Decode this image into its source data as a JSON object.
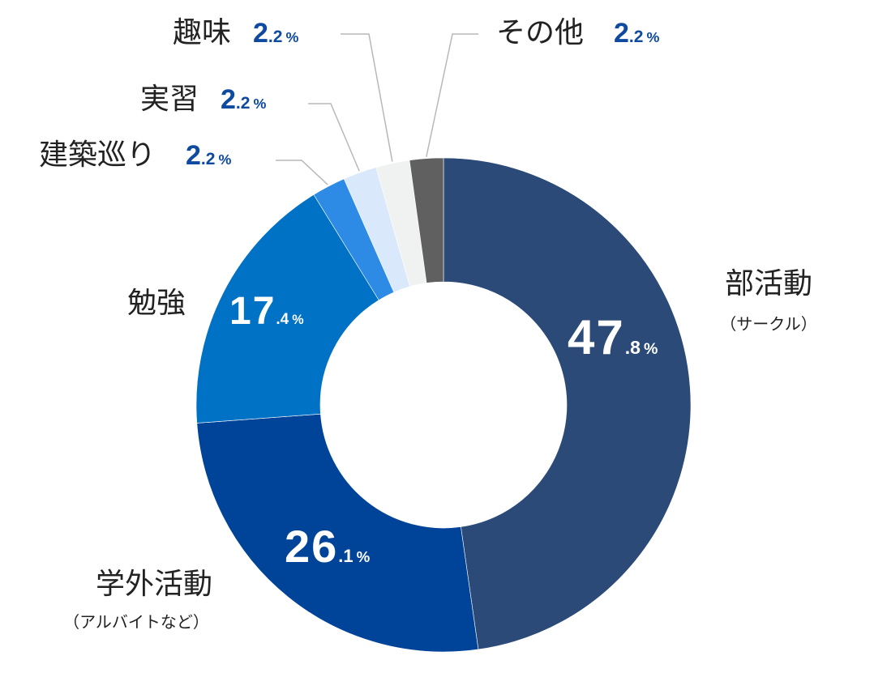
{
  "chart_data": {
    "type": "pie",
    "donut": true,
    "start": "top",
    "direction": "clockwise",
    "slices": [
      {
        "label": "部活動",
        "sublabel": "（サークル）",
        "value": 47.8,
        "int": "47",
        "dec": ".8",
        "unit": "%",
        "color": "#2c4a78"
      },
      {
        "label": "学外活動",
        "sublabel": "（アルバイトなど）",
        "value": 26.1,
        "int": "26",
        "dec": ".1",
        "unit": "%",
        "color": "#004499"
      },
      {
        "label": "勉強",
        "sublabel": "",
        "value": 17.4,
        "int": "17",
        "dec": ".4",
        "unit": "%",
        "color": "#0072c6"
      },
      {
        "label": "建築巡り",
        "sublabel": "",
        "value": 2.2,
        "int": "2",
        "dec": ".2",
        "unit": "%",
        "color": "#2d8ae5"
      },
      {
        "label": "実習",
        "sublabel": "",
        "value": 2.2,
        "int": "2",
        "dec": ".2",
        "unit": "%",
        "color": "#d9e8fb"
      },
      {
        "label": "趣味",
        "sublabel": "",
        "value": 2.2,
        "int": "2",
        "dec": ".2",
        "unit": "%",
        "color": "#f0f2f2"
      },
      {
        "label": "その他",
        "sublabel": "",
        "value": 2.2,
        "int": "2",
        "dec": ".2",
        "unit": "%",
        "color": "#606060"
      }
    ],
    "value_label_color_inside": "#ffffff",
    "value_label_color_outside": "#0d4aa0"
  }
}
